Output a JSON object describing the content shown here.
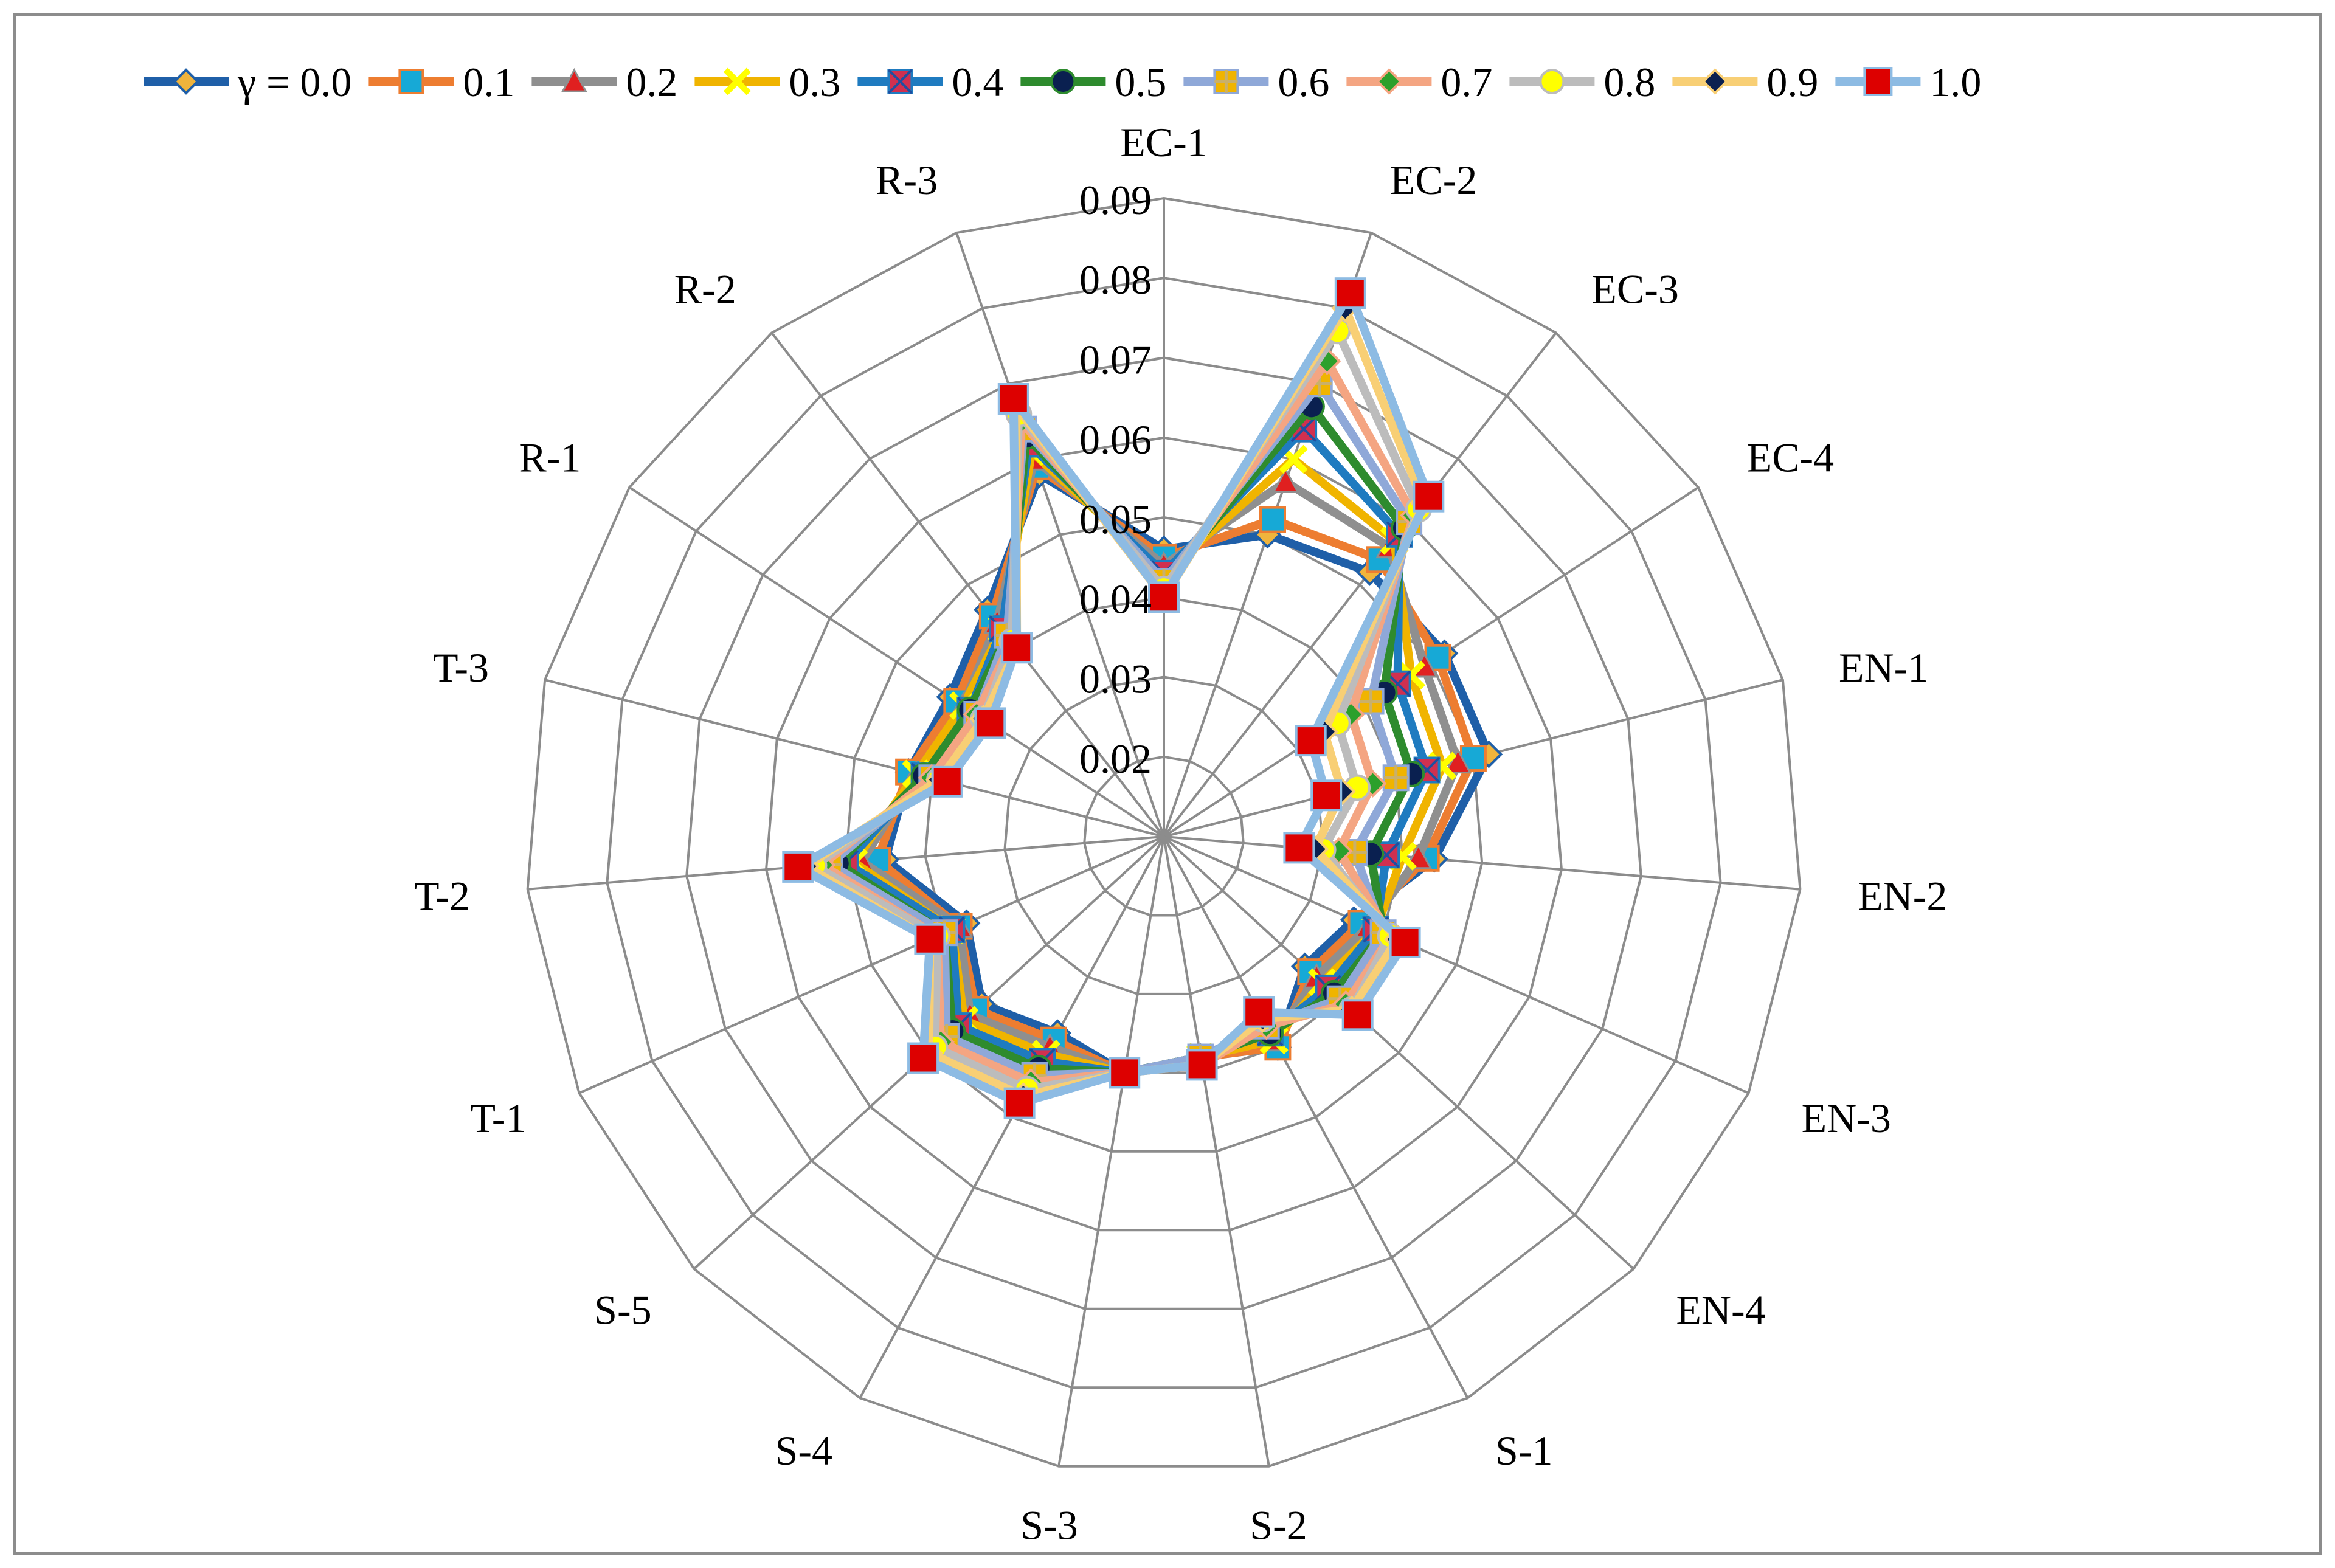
{
  "chart_data": {
    "type": "radar",
    "legend_position": "top",
    "grid": true,
    "r_range": [
      0.01,
      0.09
    ],
    "r_ticks": [
      0.01,
      0.02,
      0.03,
      0.04,
      0.05,
      0.06,
      0.07,
      0.08,
      0.09
    ],
    "r_tick_labels": [
      "",
      "0.02",
      "0.03",
      "0.04",
      "0.05",
      "0.06",
      "0.07",
      "0.08",
      "0.09"
    ],
    "categories": [
      "EC-1",
      "EC-2",
      "EC-3",
      "EC-4",
      "EN-1",
      "EN-2",
      "EN-3",
      "EN-4",
      "S-1",
      "S-2",
      "S-3",
      "S-4",
      "S-5",
      "T-1",
      "T-2",
      "T-3",
      "R-1",
      "R-2",
      "R-3"
    ],
    "series": [
      {
        "name": "γ = 0.0",
        "color": "#1f5fa8",
        "marker": "diamond",
        "marker_fill": "#f0b43c",
        "values": [
          0.046,
          0.05,
          0.052,
          0.052,
          0.052,
          0.044,
          0.036,
          0.034,
          0.04,
          0.038,
          0.04,
          0.038,
          0.041,
          0.037,
          0.045,
          0.043,
          0.042,
          0.046,
          0.058
        ]
      },
      {
        "name": "0.1",
        "color": "#ed7d31",
        "marker": "square",
        "marker_fill": "#17a9d6",
        "values": [
          0.045,
          0.052,
          0.054,
          0.051,
          0.05,
          0.043,
          0.037,
          0.035,
          0.04,
          0.038,
          0.04,
          0.039,
          0.042,
          0.038,
          0.046,
          0.043,
          0.041,
          0.045,
          0.059
        ]
      },
      {
        "name": "0.2",
        "color": "#8f8f8f",
        "marker": "triangle",
        "marker_fill": "#e02020",
        "values": [
          0.044,
          0.057,
          0.056,
          0.049,
          0.048,
          0.042,
          0.038,
          0.036,
          0.039,
          0.038,
          0.04,
          0.04,
          0.043,
          0.038,
          0.048,
          0.042,
          0.04,
          0.044,
          0.06
        ]
      },
      {
        "name": "0.3",
        "color": "#f0b400",
        "marker": "x",
        "marker_fill": "#ffff00",
        "values": [
          0.043,
          0.06,
          0.057,
          0.047,
          0.046,
          0.04,
          0.039,
          0.037,
          0.039,
          0.038,
          0.04,
          0.041,
          0.044,
          0.039,
          0.049,
          0.042,
          0.04,
          0.043,
          0.061
        ]
      },
      {
        "name": "0.4",
        "color": "#1f7bc0",
        "marker": "star",
        "marker_fill": "#d03050",
        "values": [
          0.043,
          0.064,
          0.058,
          0.045,
          0.044,
          0.038,
          0.039,
          0.038,
          0.038,
          0.038,
          0.04,
          0.042,
          0.045,
          0.039,
          0.05,
          0.041,
          0.039,
          0.043,
          0.062
        ]
      },
      {
        "name": "0.5",
        "color": "#2e8b2e",
        "marker": "circle",
        "marker_fill": "#0a2050",
        "values": [
          0.042,
          0.067,
          0.059,
          0.043,
          0.042,
          0.036,
          0.04,
          0.039,
          0.038,
          0.038,
          0.04,
          0.043,
          0.046,
          0.04,
          0.051,
          0.041,
          0.039,
          0.042,
          0.063
        ]
      },
      {
        "name": "0.6",
        "color": "#8fa8d8",
        "marker": "square-plus",
        "marker_fill": "#f0b400",
        "values": [
          0.042,
          0.07,
          0.06,
          0.041,
          0.04,
          0.034,
          0.04,
          0.04,
          0.037,
          0.038,
          0.04,
          0.044,
          0.047,
          0.04,
          0.052,
          0.04,
          0.038,
          0.042,
          0.064
        ]
      },
      {
        "name": "0.7",
        "color": "#f4a582",
        "marker": "diamond",
        "marker_fill": "#2ca02c",
        "values": [
          0.041,
          0.073,
          0.061,
          0.038,
          0.037,
          0.032,
          0.041,
          0.041,
          0.037,
          0.039,
          0.04,
          0.045,
          0.048,
          0.041,
          0.053,
          0.04,
          0.038,
          0.041,
          0.065
        ]
      },
      {
        "name": "0.8",
        "color": "#bcbcbc",
        "marker": "circle",
        "marker_fill": "#ffff00",
        "values": [
          0.041,
          0.077,
          0.062,
          0.036,
          0.035,
          0.03,
          0.041,
          0.042,
          0.036,
          0.039,
          0.04,
          0.046,
          0.049,
          0.041,
          0.054,
          0.039,
          0.037,
          0.041,
          0.066
        ]
      },
      {
        "name": "0.9",
        "color": "#f8cf75",
        "marker": "diamond",
        "marker_fill": "#0a2050",
        "values": [
          0.04,
          0.08,
          0.063,
          0.034,
          0.033,
          0.029,
          0.042,
          0.042,
          0.036,
          0.039,
          0.04,
          0.047,
          0.05,
          0.042,
          0.055,
          0.039,
          0.037,
          0.04,
          0.067
        ]
      },
      {
        "name": "1.0",
        "color": "#8dbbe3",
        "marker": "square",
        "marker_fill": "#dd0000",
        "values": [
          0.04,
          0.082,
          0.064,
          0.032,
          0.031,
          0.027,
          0.043,
          0.043,
          0.035,
          0.039,
          0.04,
          0.048,
          0.051,
          0.042,
          0.056,
          0.038,
          0.036,
          0.04,
          0.068
        ]
      }
    ]
  }
}
